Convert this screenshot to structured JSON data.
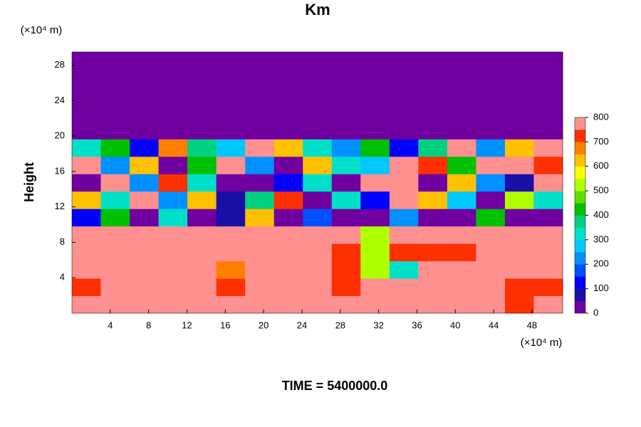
{
  "chart_data": {
    "type": "contour",
    "title": "Km",
    "ylabel": "Height",
    "y_unit": "(×10⁴ m)",
    "x_unit": "(×10⁴ m)",
    "annotation": "TIME = 5400000.0",
    "xlim": [
      0,
      51.2
    ],
    "ylim": [
      0,
      29.5
    ],
    "xticks": [
      4,
      8,
      12,
      16,
      20,
      24,
      28,
      32,
      36,
      40,
      44,
      48
    ],
    "yticks": [
      4,
      8,
      12,
      16,
      20,
      24,
      28
    ],
    "clim": [
      0,
      800
    ],
    "cticks": [
      0,
      100,
      200,
      300,
      400,
      500,
      600,
      700,
      800
    ],
    "colors": [
      "#7000a0",
      "#1a10a8",
      "#0000ff",
      "#0050ff",
      "#0090ff",
      "#00c8ff",
      "#00e0c8",
      "#00d080",
      "#00c000",
      "#60e000",
      "#b0ff00",
      "#ffff00",
      "#ffc000",
      "#ff8000",
      "#ff3000",
      "#ff9090"
    ],
    "z": [
      [
        800,
        800,
        800,
        800,
        800,
        800,
        800,
        800,
        800,
        800,
        800,
        800,
        800,
        800,
        800,
        700,
        800
      ],
      [
        700,
        800,
        800,
        800,
        750,
        700,
        800,
        800,
        800,
        700,
        800,
        750,
        800,
        800,
        800,
        700,
        700
      ],
      [
        800,
        800,
        800,
        800,
        800,
        650,
        800,
        800,
        800,
        700,
        500,
        300,
        800,
        800,
        800,
        800,
        800
      ],
      [
        800,
        800,
        800,
        800,
        800,
        800,
        800,
        800,
        800,
        700,
        500,
        700,
        700,
        700,
        800,
        800,
        800
      ],
      [
        800,
        800,
        750,
        800,
        800,
        800,
        800,
        800,
        800,
        800,
        500,
        800,
        800,
        800,
        800,
        800,
        800
      ],
      [
        100,
        400,
        0,
        300,
        0,
        50,
        600,
        0,
        150,
        0,
        0,
        200,
        0,
        0,
        400,
        0,
        0
      ],
      [
        600,
        300,
        800,
        200,
        600,
        50,
        350,
        700,
        0,
        300,
        100,
        800,
        600,
        250,
        0,
        500,
        300
      ],
      [
        0,
        800,
        200,
        700,
        300,
        0,
        0,
        100,
        300,
        0,
        800,
        800,
        0,
        600,
        200,
        50,
        800
      ],
      [
        800,
        200,
        600,
        0,
        400,
        800,
        200,
        0,
        600,
        300,
        250,
        800,
        700,
        400,
        800,
        800,
        700
      ],
      [
        300,
        400,
        100,
        650,
        350,
        250,
        800,
        600,
        300,
        200,
        400,
        100,
        350,
        800,
        200,
        600,
        800
      ],
      [
        0,
        0,
        0,
        0,
        0,
        0,
        0,
        0,
        0,
        0,
        0,
        0,
        0,
        0,
        0,
        0,
        0
      ],
      [
        0,
        0,
        0,
        0,
        0,
        0,
        0,
        0,
        0,
        0,
        0,
        0,
        0,
        0,
        0,
        0,
        0
      ],
      [
        0,
        0,
        0,
        0,
        0,
        0,
        0,
        0,
        0,
        0,
        0,
        0,
        0,
        0,
        0,
        0,
        0
      ],
      [
        0,
        0,
        0,
        0,
        0,
        0,
        0,
        0,
        0,
        0,
        0,
        0,
        0,
        0,
        0,
        0,
        0
      ],
      [
        0,
        0,
        0,
        0,
        0,
        0,
        0,
        0,
        0,
        0,
        0,
        0,
        0,
        0,
        0,
        0,
        0
      ]
    ]
  }
}
